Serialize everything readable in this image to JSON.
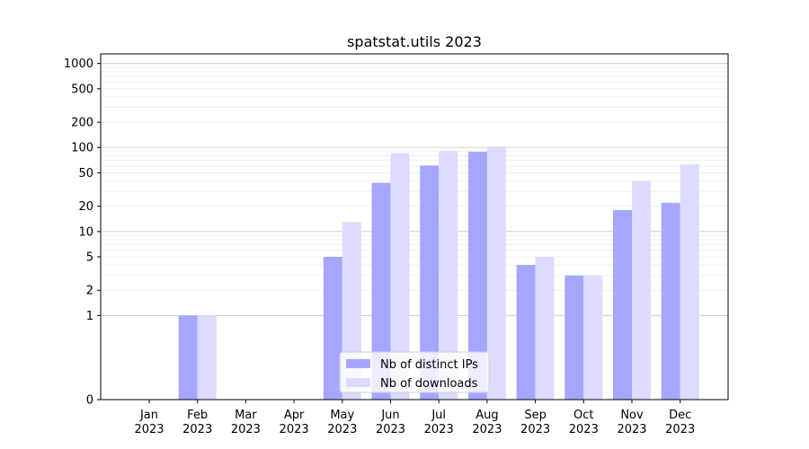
{
  "chart_data": {
    "type": "bar",
    "title": "spatstat.utils 2023",
    "xlabel": "",
    "ylabel": "",
    "scale": "symlog",
    "categories": [
      [
        "Jan",
        "2023"
      ],
      [
        "Feb",
        "2023"
      ],
      [
        "Mar",
        "2023"
      ],
      [
        "Apr",
        "2023"
      ],
      [
        "May",
        "2023"
      ],
      [
        "Jun",
        "2023"
      ],
      [
        "Jul",
        "2023"
      ],
      [
        "Aug",
        "2023"
      ],
      [
        "Sep",
        "2023"
      ],
      [
        "Oct",
        "2023"
      ],
      [
        "Nov",
        "2023"
      ],
      [
        "Dec",
        "2023"
      ]
    ],
    "y_ticks": [
      0,
      1,
      2,
      5,
      10,
      20,
      50,
      100,
      200,
      500,
      1000
    ],
    "ylim": [
      0,
      1300
    ],
    "grid": true,
    "legend_position": "bottom-center",
    "series": [
      {
        "name": "Nb of distinct IPs",
        "color": "#a6a6ff",
        "values": [
          0,
          1,
          0,
          0,
          5,
          38,
          61,
          89,
          4,
          3,
          18,
          22
        ]
      },
      {
        "name": "Nb of downloads",
        "color": "#dcdcff",
        "values": [
          0,
          1,
          0,
          0,
          13,
          86,
          91,
          103,
          5,
          3,
          40,
          63
        ]
      }
    ]
  }
}
